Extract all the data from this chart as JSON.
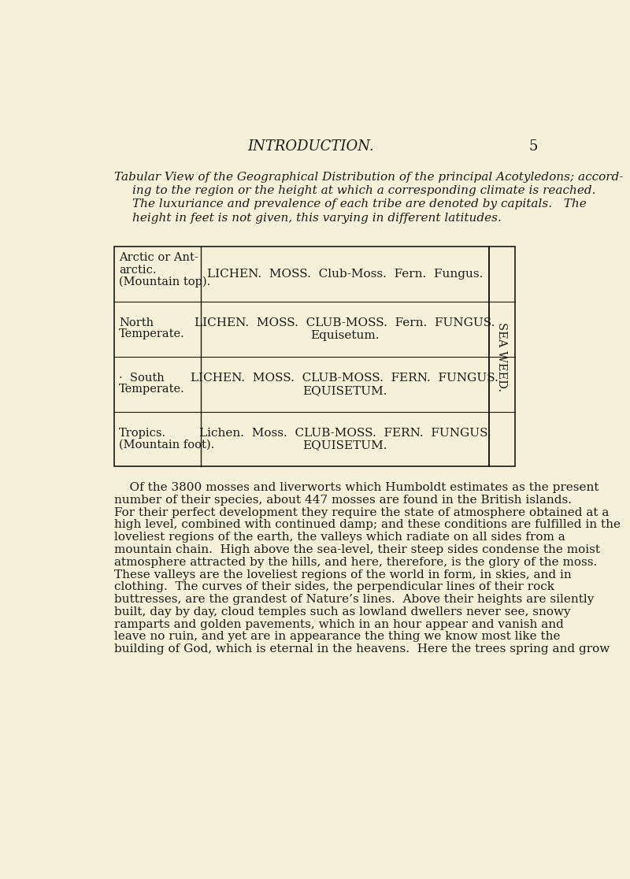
{
  "bg_color": "#f5f0d8",
  "text_color": "#1a1a1a",
  "page_header": "INTRODUCTION.",
  "page_number": "5",
  "intro_line1": "Tabular View of the Geographical Distribution of the principal Acotyledons; accord-",
  "intro_line2": "ing to the region or the height at which a corresponding climate is reached.",
  "intro_line3": "The luxuriance and prevalence of each tribe are denoted by capitals.   The",
  "intro_line4": "height in feet is not given, this varying in different latitudes.",
  "row0_left1": "Arctic or Ant-",
  "row0_left2": "arctic.",
  "row0_left3": "(Mountain top).",
  "row0_right1": "LICHEN.  MOSS.  Club-Moss.  Fern.  Fungus.",
  "row0_right2": "",
  "row1_left1": "North",
  "row1_left2": "Temperate.",
  "row1_right1": "LICHEN.  MOSS.  CLUB-MOSS.  Fern.  FUNGUS.",
  "row1_right2": "Equisetum.",
  "row2_left1": "·  South",
  "row2_left2": "Temperate.",
  "row2_right1": "LICHEN.  MOSS.  CLUB-MOSS.  FERN.  FUNGUS.",
  "row2_right2": "EQUISETUM.",
  "row3_left1": "Tropics.",
  "row3_left2": "(Mountain foot).",
  "row3_right1": "Lichen.  Moss.  CLUB-MOSS.  FERN.  FUNGUS.",
  "row3_right2": "EQUISETUM.",
  "sea_weed": "SEA WEED.",
  "body_lines": [
    "    Of the 3800 mosses and liverworts which Humboldt estimates as the present",
    "number of their species, about 447 mosses are found in the British islands.",
    "For their perfect development they require the state of atmosphere obtained at a",
    "high level, combined with continued damp; and these conditions are fulfilled in the",
    "loveliest regions of the earth, the valleys which radiate on all sides from a",
    "mountain chain.  High above the sea-level, their steep sides condense the moist",
    "atmosphere attracted by the hills, and here, therefore, is the glory of the moss.",
    "These valleys are the loveliest regions of the world in form, in skies, and in",
    "clothing.  The curves of their sides, the perpendicular lines of their rock",
    "buttresses, are the grandest of Nature’s lines.  Above their heights are silently",
    "built, day by day, cloud temples such as lowland dwellers never see, snowy",
    "ramparts and golden pavements, which in an hour appear and vanish and",
    "leave no ruin, and yet are in appearance the thing we know most like the",
    "building of God, which is eternal in the heavens.  Here the trees spring and grow"
  ]
}
